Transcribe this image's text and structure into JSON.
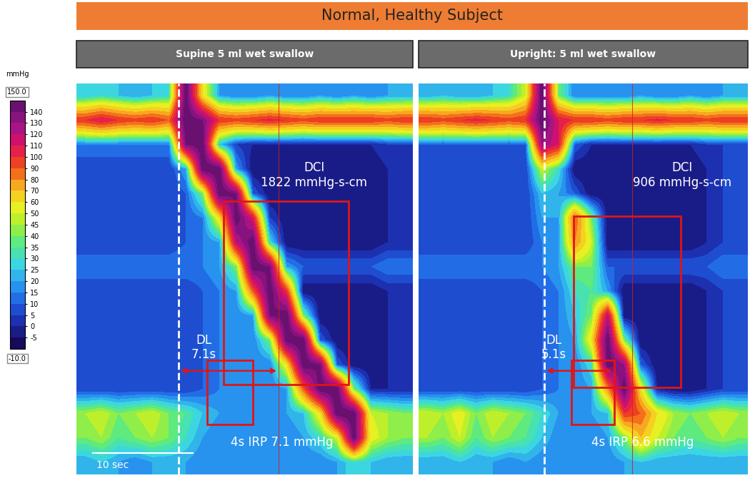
{
  "chart_data": {
    "type": "heatmap",
    "title": "Normal, Healthy Subject",
    "tick_labels": false,
    "scale_bar": "10 sec",
    "colorbar": {
      "label": "mmHg",
      "range": [
        -10,
        150
      ],
      "range_labels": [
        "-10.0",
        "150.0"
      ],
      "ticks": [
        -5,
        0,
        5,
        10,
        15,
        20,
        25,
        30,
        35,
        40,
        45,
        50,
        60,
        70,
        80,
        90,
        100,
        110,
        120,
        130,
        140
      ]
    },
    "panels": [
      {
        "title": "Supine 5 ml wet swallow",
        "dci": {
          "label": "DCI",
          "value": "1822 mmHg-s-cm"
        },
        "dl": {
          "label": "DL",
          "value": "7.1s"
        },
        "irp": "4s IRP 7.1 mmHg",
        "pressure": [
          [
            25,
            30,
            25,
            20,
            25,
            30,
            150,
            60,
            20,
            15,
            15,
            20,
            15,
            15,
            20,
            15,
            20,
            15,
            20,
            20
          ],
          [
            100,
            110,
            100,
            95,
            100,
            90,
            150,
            140,
            100,
            95,
            100,
            105,
            100,
            95,
            100,
            100,
            100,
            100,
            95,
            100
          ],
          [
            15,
            15,
            15,
            15,
            15,
            15,
            140,
            150,
            25,
            5,
            0,
            0,
            0,
            0,
            0,
            0,
            0,
            0,
            5,
            5
          ],
          [
            5,
            5,
            5,
            5,
            5,
            5,
            20,
            150,
            150,
            20,
            -5,
            -5,
            -5,
            -5,
            -5,
            -5,
            -5,
            -5,
            0,
            0
          ],
          [
            5,
            5,
            5,
            5,
            5,
            5,
            10,
            40,
            150,
            140,
            10,
            -5,
            -5,
            -5,
            -5,
            -5,
            -5,
            -5,
            0,
            0
          ],
          [
            5,
            5,
            5,
            5,
            5,
            5,
            10,
            15,
            60,
            150,
            110,
            5,
            -5,
            -5,
            -5,
            -5,
            -5,
            -5,
            0,
            0
          ],
          [
            5,
            5,
            5,
            5,
            5,
            5,
            10,
            15,
            20,
            120,
            150,
            30,
            -5,
            -5,
            -5,
            -5,
            -5,
            -5,
            0,
            0
          ],
          [
            15,
            15,
            15,
            15,
            15,
            15,
            15,
            15,
            20,
            40,
            150,
            140,
            20,
            10,
            10,
            10,
            10,
            10,
            15,
            15
          ],
          [
            5,
            5,
            5,
            5,
            5,
            5,
            5,
            10,
            15,
            20,
            90,
            150,
            100,
            -5,
            -5,
            -5,
            -5,
            -5,
            0,
            0
          ],
          [
            5,
            5,
            5,
            5,
            5,
            5,
            5,
            10,
            15,
            15,
            20,
            140,
            150,
            40,
            -5,
            -5,
            -5,
            -5,
            0,
            0
          ],
          [
            5,
            5,
            5,
            5,
            5,
            5,
            5,
            10,
            15,
            15,
            15,
            40,
            150,
            150,
            10,
            -5,
            -5,
            -5,
            0,
            0
          ],
          [
            5,
            5,
            5,
            5,
            5,
            5,
            5,
            10,
            15,
            15,
            15,
            15,
            60,
            150,
            140,
            10,
            -5,
            -5,
            0,
            0
          ],
          [
            5,
            5,
            5,
            5,
            5,
            5,
            5,
            10,
            15,
            15,
            15,
            15,
            20,
            90,
            150,
            150,
            40,
            0,
            0,
            0
          ],
          [
            45,
            50,
            40,
            45,
            50,
            40,
            35,
            25,
            20,
            20,
            20,
            20,
            20,
            25,
            60,
            150,
            150,
            50,
            45,
            40
          ],
          [
            40,
            45,
            35,
            40,
            45,
            40,
            30,
            20,
            15,
            15,
            15,
            15,
            15,
            20,
            30,
            50,
            150,
            55,
            45,
            40
          ],
          [
            20,
            25,
            20,
            15,
            20,
            20,
            20,
            15,
            15,
            15,
            15,
            15,
            15,
            15,
            15,
            20,
            30,
            25,
            20,
            20
          ]
        ]
      },
      {
        "title": "Upright: 5 ml wet swallow",
        "dci": {
          "label": "DCI",
          "value": "906 mmHg-s-cm"
        },
        "dl": {
          "label": "DL",
          "value": "5.1s"
        },
        "irp": "4s IRP 6.6 mmHg",
        "pressure": [
          [
            20,
            25,
            20,
            20,
            25,
            30,
            50,
            150,
            40,
            15,
            15,
            15,
            15,
            20,
            15,
            15,
            20,
            15,
            20,
            20
          ],
          [
            100,
            95,
            100,
            105,
            100,
            95,
            100,
            150,
            110,
            100,
            100,
            95,
            100,
            100,
            105,
            100,
            100,
            95,
            100,
            100
          ],
          [
            10,
            10,
            10,
            10,
            10,
            10,
            10,
            130,
            110,
            10,
            0,
            0,
            0,
            0,
            0,
            0,
            0,
            5,
            5,
            5
          ],
          [
            5,
            5,
            5,
            5,
            5,
            5,
            5,
            50,
            30,
            -5,
            -5,
            -5,
            -5,
            -5,
            -5,
            -5,
            -5,
            0,
            5,
            5
          ],
          [
            5,
            5,
            5,
            5,
            5,
            5,
            5,
            25,
            20,
            10,
            -5,
            -5,
            -5,
            -5,
            -5,
            -5,
            -5,
            0,
            5,
            5
          ],
          [
            5,
            5,
            5,
            5,
            5,
            5,
            5,
            20,
            20,
            90,
            40,
            -5,
            -5,
            -5,
            -5,
            -5,
            -5,
            0,
            5,
            5
          ],
          [
            5,
            5,
            5,
            5,
            5,
            5,
            5,
            15,
            20,
            80,
            50,
            -5,
            -5,
            -5,
            -5,
            -5,
            -5,
            0,
            5,
            5
          ],
          [
            15,
            15,
            15,
            15,
            15,
            15,
            15,
            15,
            20,
            40,
            40,
            10,
            10,
            10,
            10,
            10,
            10,
            10,
            15,
            15
          ],
          [
            5,
            5,
            5,
            5,
            5,
            5,
            5,
            10,
            15,
            30,
            35,
            20,
            -5,
            -5,
            -5,
            -5,
            -5,
            0,
            5,
            5
          ],
          [
            5,
            5,
            5,
            5,
            5,
            5,
            5,
            10,
            15,
            25,
            40,
            120,
            -5,
            -5,
            -5,
            -5,
            -5,
            0,
            5,
            5
          ],
          [
            5,
            5,
            5,
            5,
            5,
            5,
            5,
            10,
            15,
            20,
            60,
            150,
            40,
            -5,
            -5,
            -5,
            -5,
            0,
            5,
            5
          ],
          [
            5,
            5,
            5,
            5,
            5,
            5,
            5,
            10,
            15,
            15,
            30,
            150,
            130,
            10,
            -5,
            -5,
            -5,
            0,
            5,
            5
          ],
          [
            5,
            5,
            5,
            5,
            5,
            5,
            5,
            10,
            15,
            15,
            20,
            80,
            150,
            60,
            0,
            -5,
            -5,
            0,
            5,
            5
          ],
          [
            50,
            45,
            55,
            40,
            50,
            45,
            40,
            30,
            20,
            20,
            20,
            25,
            100,
            90,
            60,
            45,
            40,
            45,
            50,
            45
          ],
          [
            45,
            40,
            50,
            35,
            45,
            40,
            35,
            25,
            15,
            15,
            15,
            20,
            40,
            70,
            50,
            40,
            35,
            40,
            45,
            40
          ],
          [
            20,
            20,
            25,
            20,
            20,
            15,
            20,
            15,
            15,
            15,
            15,
            15,
            20,
            25,
            20,
            20,
            20,
            20,
            20,
            20
          ]
        ]
      }
    ]
  }
}
